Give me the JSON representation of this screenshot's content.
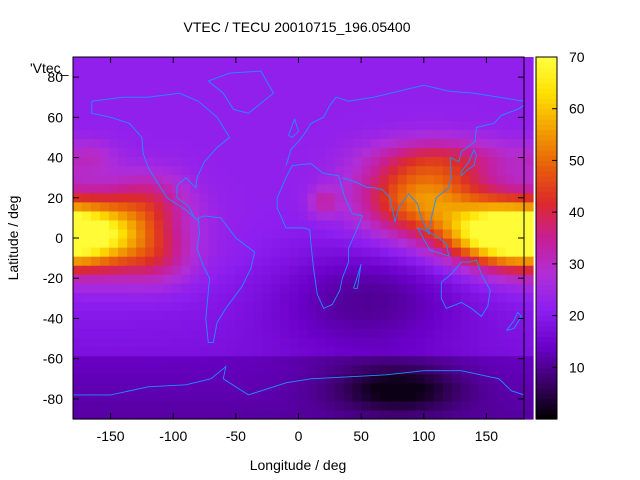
{
  "chart_data": {
    "type": "heatmap",
    "title": "VTEC / TECU 20010715_196.05400",
    "xlabel": "Longitude / deg",
    "ylabel": "Latitude / deg",
    "series_label": "'Vtec_",
    "xlim": [
      -180,
      180
    ],
    "ylim": [
      -90,
      90
    ],
    "x_ticks": [
      -150,
      -100,
      -50,
      0,
      50,
      100,
      150
    ],
    "y_ticks": [
      -80,
      -60,
      -40,
      -20,
      0,
      20,
      40,
      60,
      80
    ],
    "colorbar": {
      "min": 0,
      "max": 70,
      "ticks": [
        10,
        20,
        30,
        40,
        50,
        60,
        70
      ]
    },
    "grid": false,
    "palette": [
      "#000000",
      "#3a0066",
      "#6a00c8",
      "#8c1ef0",
      "#b02ed8",
      "#c81e96",
      "#dc2a2a",
      "#e8600a",
      "#f2a000",
      "#ffe000",
      "#ffff40"
    ],
    "coastline_color": "#1e90ff"
  }
}
